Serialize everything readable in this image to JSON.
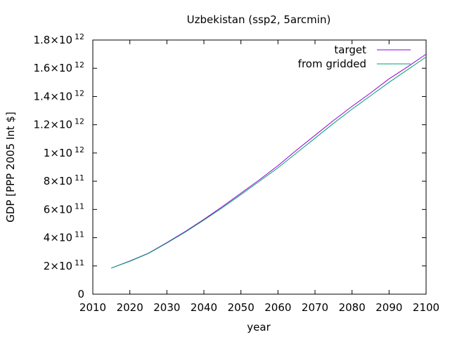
{
  "chart_data": {
    "type": "line",
    "title": "Uzbekistan (ssp2, 5arcmin)",
    "xlabel": "year",
    "ylabel": "GDP [PPP 2005 Int $]",
    "xlim": [
      2010,
      2100
    ],
    "ylim": [
      0,
      1800000000000
    ],
    "x_ticks": [
      2010,
      2020,
      2030,
      2040,
      2050,
      2060,
      2070,
      2080,
      2090,
      2100
    ],
    "y_ticks": [
      {
        "value": 0,
        "mantissa": "0",
        "exp": ""
      },
      {
        "value": 200000000000,
        "mantissa": "2×10",
        "exp": "11"
      },
      {
        "value": 400000000000,
        "mantissa": "4×10",
        "exp": "11"
      },
      {
        "value": 600000000000,
        "mantissa": "6×10",
        "exp": "11"
      },
      {
        "value": 800000000000,
        "mantissa": "8×10",
        "exp": "11"
      },
      {
        "value": 1000000000000,
        "mantissa": "1×10",
        "exp": "12"
      },
      {
        "value": 1200000000000,
        "mantissa": "1.2×10",
        "exp": "12"
      },
      {
        "value": 1400000000000,
        "mantissa": "1.4×10",
        "exp": "12"
      },
      {
        "value": 1600000000000,
        "mantissa": "1.6×10",
        "exp": "12"
      },
      {
        "value": 1800000000000,
        "mantissa": "1.8×10",
        "exp": "12"
      }
    ],
    "grid": false,
    "legend_position": "top-right",
    "x": [
      2015,
      2020,
      2025,
      2030,
      2035,
      2040,
      2045,
      2050,
      2055,
      2060,
      2065,
      2070,
      2075,
      2080,
      2085,
      2090,
      2095,
      2100
    ],
    "series": [
      {
        "name": "target",
        "color": "#9400d3",
        "values": [
          185000000000,
          235000000000,
          290000000000,
          365000000000,
          445000000000,
          530000000000,
          620000000000,
          715000000000,
          810000000000,
          910000000000,
          1020000000000,
          1125000000000,
          1230000000000,
          1330000000000,
          1425000000000,
          1525000000000,
          1610000000000,
          1700000000000
        ]
      },
      {
        "name": "from gridded",
        "color": "#009e73",
        "values": [
          185000000000,
          233000000000,
          288000000000,
          362000000000,
          440000000000,
          525000000000,
          612000000000,
          705000000000,
          800000000000,
          895000000000,
          1000000000000,
          1105000000000,
          1210000000000,
          1310000000000,
          1405000000000,
          1500000000000,
          1590000000000,
          1680000000000
        ]
      }
    ]
  }
}
